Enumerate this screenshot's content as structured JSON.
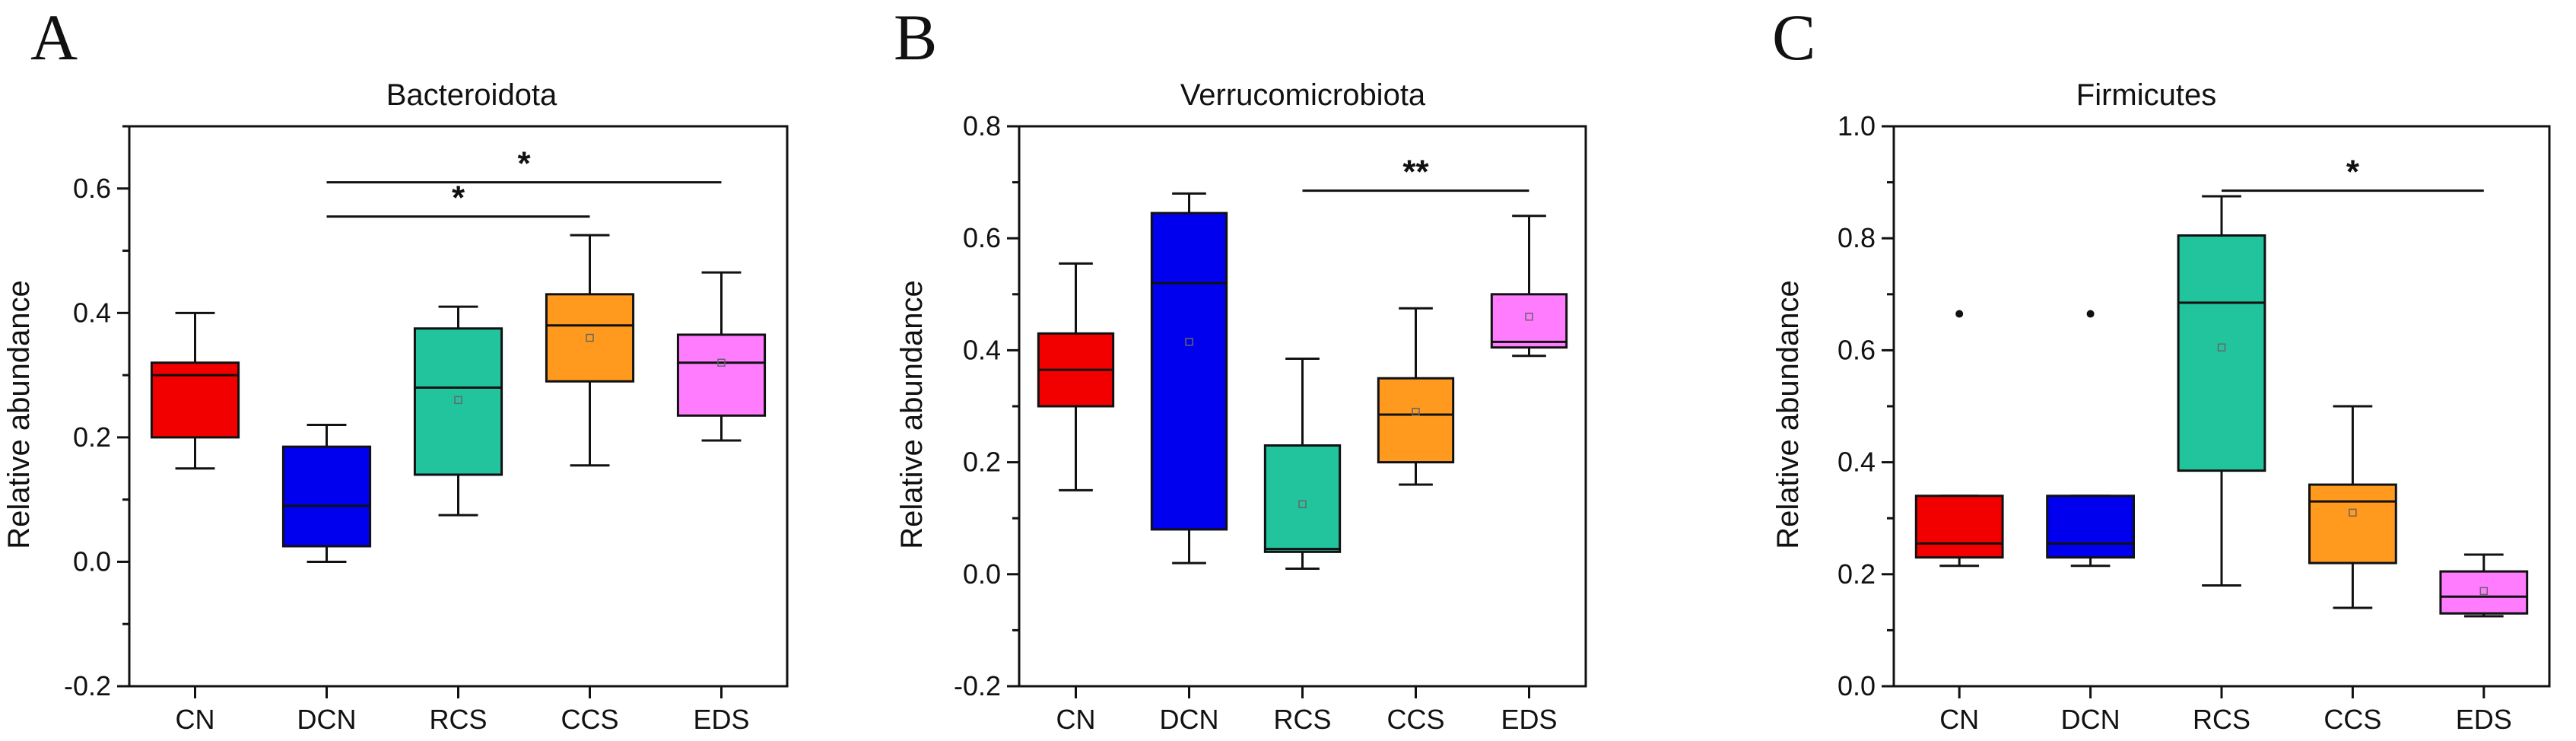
{
  "colors": {
    "CN": "#f20000",
    "DCN": "#0000ee",
    "RCS": "#22c49e",
    "CCS": "#ff9a1f",
    "EDS": "#ff7cff"
  },
  "chart_data": [
    {
      "type": "box",
      "panel": "A",
      "title": "Bacteroidota",
      "xlabel": "",
      "ylabel": "Relative abundance",
      "ylim": [
        -0.2,
        0.7
      ],
      "yticks": [
        -0.2,
        0.0,
        0.2,
        0.4,
        0.6
      ],
      "ytick_labels": [
        "-0.2",
        "0.0",
        "0.2",
        "0.4",
        "0.6"
      ],
      "categories": [
        "CN",
        "DCN",
        "RCS",
        "CCS",
        "EDS"
      ],
      "boxes": [
        {
          "group": "CN",
          "whisker_low": 0.15,
          "q1": 0.2,
          "median": 0.3,
          "q3": 0.32,
          "whisker_high": 0.4,
          "mean": null
        },
        {
          "group": "DCN",
          "whisker_low": 0.0,
          "q1": 0.025,
          "median": 0.09,
          "q3": 0.185,
          "whisker_high": 0.22,
          "mean": null
        },
        {
          "group": "RCS",
          "whisker_low": 0.075,
          "q1": 0.14,
          "median": 0.28,
          "q3": 0.375,
          "whisker_high": 0.41,
          "mean": 0.26
        },
        {
          "group": "CCS",
          "whisker_low": 0.155,
          "q1": 0.29,
          "median": 0.38,
          "q3": 0.43,
          "whisker_high": 0.525,
          "mean": 0.36
        },
        {
          "group": "EDS",
          "whisker_low": 0.195,
          "q1": 0.235,
          "median": 0.32,
          "q3": 0.365,
          "whisker_high": 0.465,
          "mean": 0.32
        }
      ],
      "outliers": [],
      "significance": [
        {
          "from": "DCN",
          "to": "EDS",
          "label": "*",
          "y": 0.61
        },
        {
          "from": "DCN",
          "to": "CCS",
          "label": "*",
          "y": 0.555
        }
      ]
    },
    {
      "type": "box",
      "panel": "B",
      "title": "Verrucomicrobiota",
      "xlabel": "",
      "ylabel": "Relative abundance",
      "ylim": [
        -0.2,
        0.8
      ],
      "yticks": [
        -0.2,
        0.0,
        0.2,
        0.4,
        0.6,
        0.8
      ],
      "ytick_labels": [
        "-0.2",
        "0.0",
        "0.2",
        "0.4",
        "0.6",
        "0.8"
      ],
      "categories": [
        "CN",
        "DCN",
        "RCS",
        "CCS",
        "EDS"
      ],
      "boxes": [
        {
          "group": "CN",
          "whisker_low": 0.15,
          "q1": 0.3,
          "median": 0.365,
          "q3": 0.43,
          "whisker_high": 0.555,
          "mean": null
        },
        {
          "group": "DCN",
          "whisker_low": 0.02,
          "q1": 0.08,
          "median": 0.52,
          "q3": 0.645,
          "whisker_high": 0.68,
          "mean": 0.415
        },
        {
          "group": "RCS",
          "whisker_low": 0.01,
          "q1": 0.04,
          "median": 0.045,
          "q3": 0.23,
          "whisker_high": 0.385,
          "mean": 0.125
        },
        {
          "group": "CCS",
          "whisker_low": 0.16,
          "q1": 0.2,
          "median": 0.285,
          "q3": 0.35,
          "whisker_high": 0.475,
          "mean": 0.29
        },
        {
          "group": "EDS",
          "whisker_low": 0.39,
          "q1": 0.405,
          "median": 0.415,
          "q3": 0.5,
          "whisker_high": 0.64,
          "mean": 0.46
        }
      ],
      "outliers": [],
      "significance": [
        {
          "from": "RCS",
          "to": "EDS",
          "label": "**",
          "y": 0.685
        }
      ]
    },
    {
      "type": "box",
      "panel": "C",
      "title": "Firmicutes",
      "xlabel": "",
      "ylabel": "Relative abundance",
      "ylim": [
        0.0,
        1.0
      ],
      "yticks": [
        0.0,
        0.2,
        0.4,
        0.6,
        0.8,
        1.0
      ],
      "ytick_labels": [
        "0.0",
        "0.2",
        "0.4",
        "0.6",
        "0.8",
        "1.0"
      ],
      "categories": [
        "CN",
        "DCN",
        "RCS",
        "CCS",
        "EDS"
      ],
      "boxes": [
        {
          "group": "CN",
          "whisker_low": 0.215,
          "q1": 0.23,
          "median": 0.255,
          "q3": 0.34,
          "whisker_high": 0.34,
          "mean": null
        },
        {
          "group": "DCN",
          "whisker_low": 0.215,
          "q1": 0.23,
          "median": 0.255,
          "q3": 0.34,
          "whisker_high": 0.34,
          "mean": null
        },
        {
          "group": "RCS",
          "whisker_low": 0.18,
          "q1": 0.385,
          "median": 0.685,
          "q3": 0.805,
          "whisker_high": 0.875,
          "mean": 0.605
        },
        {
          "group": "CCS",
          "whisker_low": 0.14,
          "q1": 0.22,
          "median": 0.33,
          "q3": 0.36,
          "whisker_high": 0.5,
          "mean": 0.31
        },
        {
          "group": "EDS",
          "whisker_low": 0.125,
          "q1": 0.13,
          "median": 0.16,
          "q3": 0.205,
          "whisker_high": 0.235,
          "mean": 0.17
        }
      ],
      "outliers": [
        {
          "group": "CN",
          "value": 0.665
        },
        {
          "group": "DCN",
          "value": 0.665
        }
      ],
      "significance": [
        {
          "from": "RCS",
          "to": "EDS",
          "label": "*",
          "y": 0.885
        }
      ]
    }
  ]
}
